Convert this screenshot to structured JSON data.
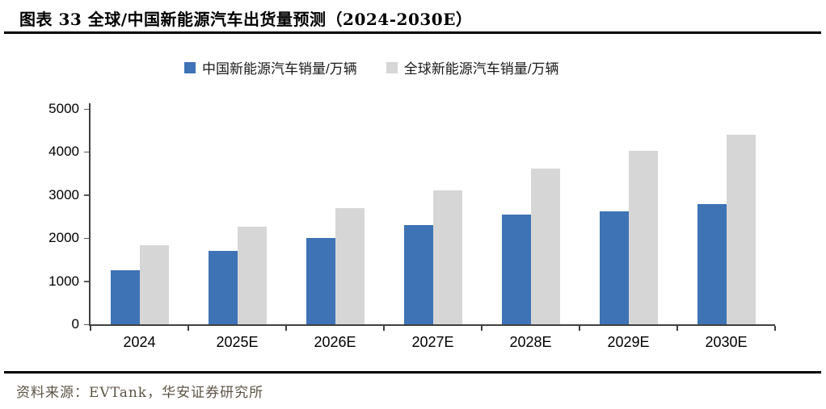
{
  "header": {
    "title": "图表 33 全球/中国新能源汽车出货量预测（2024-2030E）"
  },
  "footer": {
    "source": "资料来源：EVTank，华安证券研究所"
  },
  "colors": {
    "china": "#3E73B5",
    "global": "#D6D6D6",
    "axis": "#404040",
    "rule": "#000000",
    "source_text": "#5C5446"
  },
  "chart_data": {
    "type": "bar",
    "title": "图表 33 全球/中国新能源汽车出货量预测（2024-2030E）",
    "categories": [
      "2024",
      "2025E",
      "2026E",
      "2027E",
      "2028E",
      "2029E",
      "2030E"
    ],
    "series": [
      {
        "name": "中国新能源汽车销量/万辆",
        "color_key": "china",
        "values": [
          1250,
          1700,
          2000,
          2300,
          2540,
          2630,
          2790
        ]
      },
      {
        "name": "全球新能源汽车销量/万辆",
        "color_key": "global",
        "values": [
          1830,
          2260,
          2690,
          3110,
          3620,
          4020,
          4400
        ]
      }
    ],
    "xlabel": "",
    "ylabel": "",
    "ylim": [
      0,
      5000
    ],
    "yticks": [
      0,
      1000,
      2000,
      3000,
      4000,
      5000
    ],
    "grid": false,
    "legend_position": "top"
  }
}
